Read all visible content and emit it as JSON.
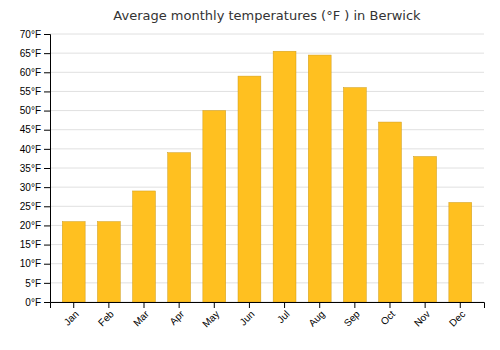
{
  "chart_data": {
    "type": "bar",
    "title": "Average monthly temperatures (°F ) in Berwick",
    "categories": [
      "Jan",
      "Feb",
      "Mar",
      "Apr",
      "May",
      "Jun",
      "Jul",
      "Aug",
      "Sep",
      "Oct",
      "Nov",
      "Dec"
    ],
    "values": [
      21,
      21,
      29,
      39,
      50,
      59,
      65.5,
      64.5,
      56,
      47,
      38,
      26
    ],
    "color": "#FFC020",
    "ylim": [
      0,
      70
    ],
    "yticks": [
      {
        "value": 0,
        "label": "0°F"
      },
      {
        "value": 5,
        "label": "5°F"
      },
      {
        "value": 10,
        "label": "10°F"
      },
      {
        "value": 15,
        "label": "15°F"
      },
      {
        "value": 20,
        "label": "20°F"
      },
      {
        "value": 25,
        "label": "25°F"
      },
      {
        "value": 30,
        "label": "30°F"
      },
      {
        "value": 35,
        "label": "35°F"
      },
      {
        "value": 40,
        "label": "40°F"
      },
      {
        "value": 45,
        "label": "45°F"
      },
      {
        "value": 50,
        "label": "50°F"
      },
      {
        "value": 55,
        "label": "55°F"
      },
      {
        "value": 60,
        "label": "60°F"
      },
      {
        "value": 65,
        "label": "65°F"
      },
      {
        "value": 70,
        "label": "70°F"
      }
    ],
    "grid": true
  }
}
